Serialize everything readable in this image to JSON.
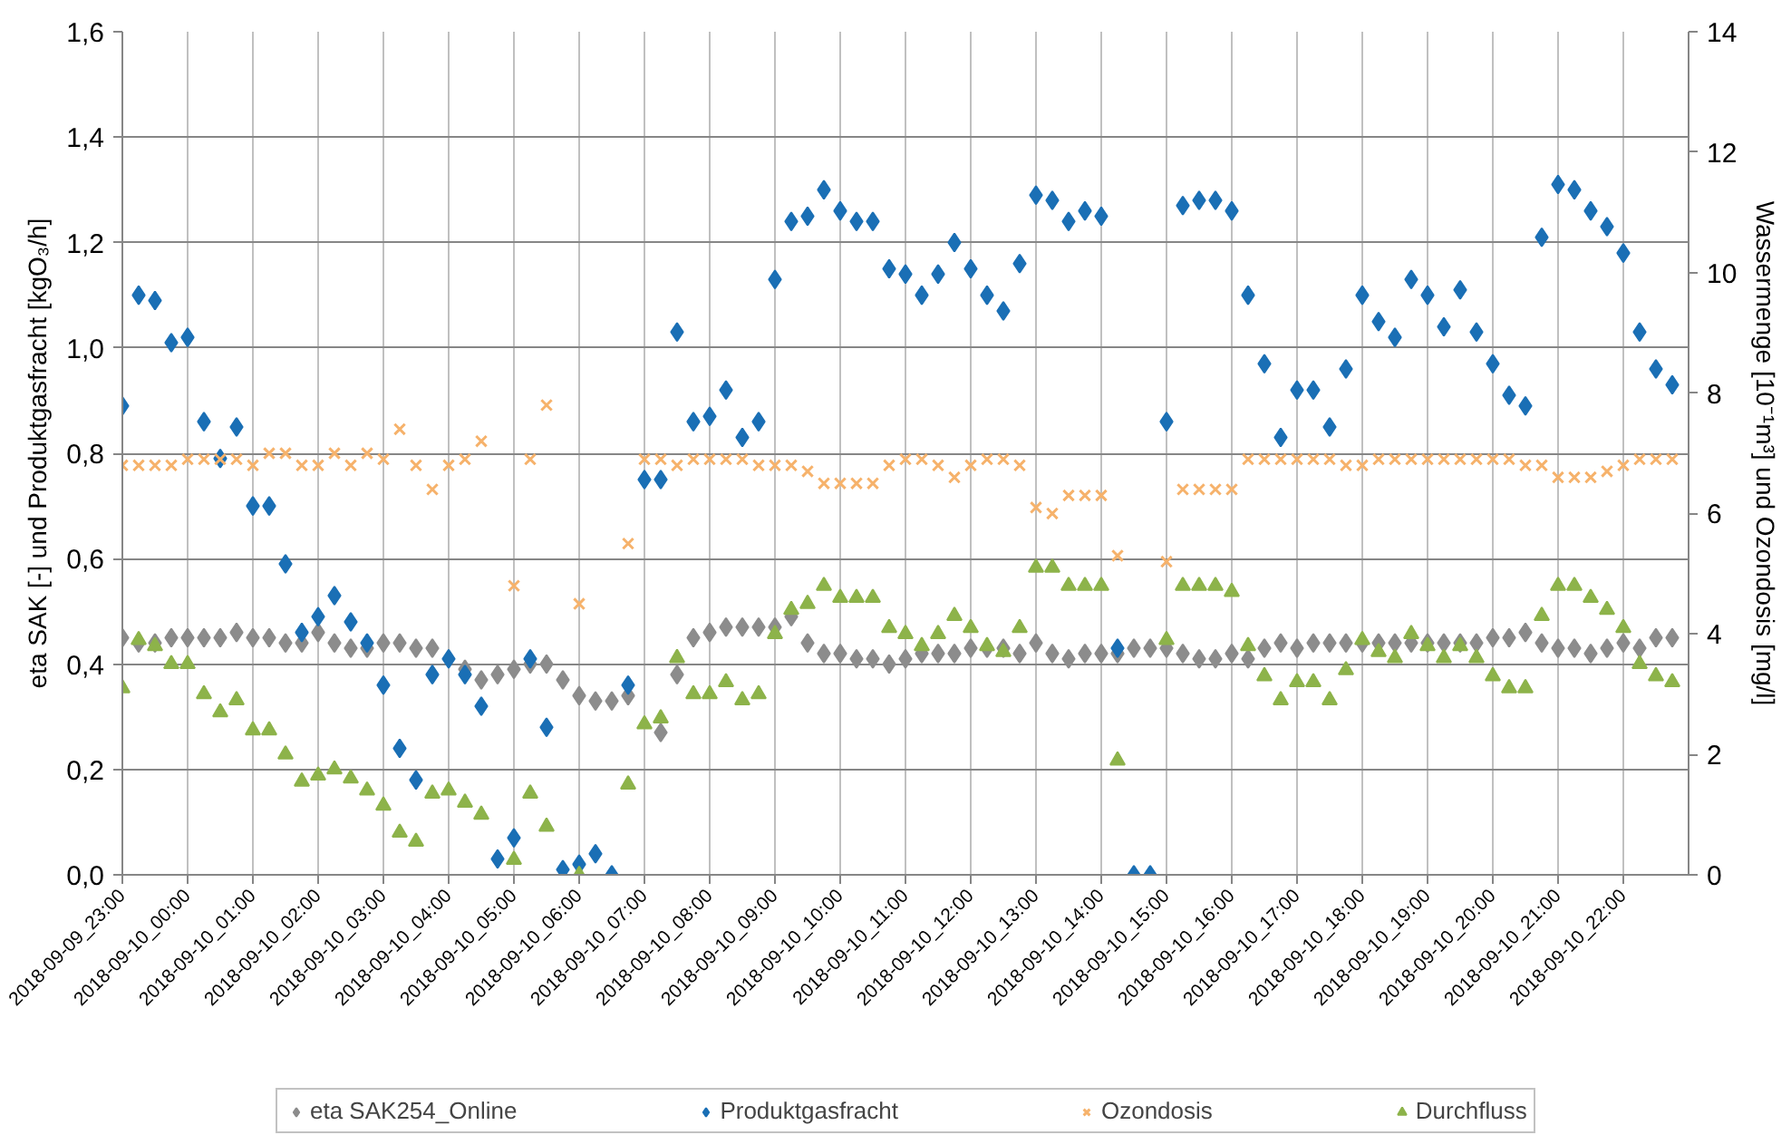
{
  "chart_data": {
    "type": "scatter",
    "x": [
      "2018-09-09T23:00",
      "2018-09-09T23:15",
      "2018-09-09T23:30",
      "2018-09-09T23:45",
      "2018-09-10T00:00",
      "2018-09-10T00:15",
      "2018-09-10T00:30",
      "2018-09-10T00:45",
      "2018-09-10T01:00",
      "2018-09-10T01:15",
      "2018-09-10T01:30",
      "2018-09-10T01:45",
      "2018-09-10T02:00",
      "2018-09-10T02:15",
      "2018-09-10T02:30",
      "2018-09-10T02:45",
      "2018-09-10T03:00",
      "2018-09-10T03:15",
      "2018-09-10T03:30",
      "2018-09-10T03:45",
      "2018-09-10T04:00",
      "2018-09-10T04:15",
      "2018-09-10T04:30",
      "2018-09-10T04:45",
      "2018-09-10T05:00",
      "2018-09-10T05:15",
      "2018-09-10T05:30",
      "2018-09-10T05:45",
      "2018-09-10T06:00",
      "2018-09-10T06:15",
      "2018-09-10T06:30",
      "2018-09-10T06:45",
      "2018-09-10T07:00",
      "2018-09-10T07:15",
      "2018-09-10T07:30",
      "2018-09-10T07:45",
      "2018-09-10T08:00",
      "2018-09-10T08:15",
      "2018-09-10T08:30",
      "2018-09-10T08:45",
      "2018-09-10T09:00",
      "2018-09-10T09:15",
      "2018-09-10T09:30",
      "2018-09-10T09:45",
      "2018-09-10T10:00",
      "2018-09-10T10:15",
      "2018-09-10T10:30",
      "2018-09-10T10:45",
      "2018-09-10T11:00",
      "2018-09-10T11:15",
      "2018-09-10T11:30",
      "2018-09-10T11:45",
      "2018-09-10T12:00",
      "2018-09-10T12:15",
      "2018-09-10T12:30",
      "2018-09-10T12:45",
      "2018-09-10T13:00",
      "2018-09-10T13:15",
      "2018-09-10T13:30",
      "2018-09-10T13:45",
      "2018-09-10T14:00",
      "2018-09-10T14:15",
      "2018-09-10T14:30",
      "2018-09-10T14:45",
      "2018-09-10T15:00",
      "2018-09-10T15:15",
      "2018-09-10T15:30",
      "2018-09-10T15:45",
      "2018-09-10T16:00",
      "2018-09-10T16:15",
      "2018-09-10T16:30",
      "2018-09-10T16:45",
      "2018-09-10T17:00",
      "2018-09-10T17:15",
      "2018-09-10T17:30",
      "2018-09-10T17:45",
      "2018-09-10T18:00",
      "2018-09-10T18:15",
      "2018-09-10T18:30",
      "2018-09-10T18:45",
      "2018-09-10T19:00",
      "2018-09-10T19:15",
      "2018-09-10T19:30",
      "2018-09-10T19:45",
      "2018-09-10T20:00",
      "2018-09-10T20:15",
      "2018-09-10T20:30",
      "2018-09-10T20:45",
      "2018-09-10T21:00",
      "2018-09-10T21:15",
      "2018-09-10T21:30",
      "2018-09-10T21:45",
      "2018-09-10T22:00",
      "2018-09-10T22:15",
      "2018-09-10T22:30",
      "2018-09-10T22:45"
    ],
    "xlim": [
      "2018-09-09T23:00",
      "2018-09-10T23:00"
    ],
    "xticks": [
      {
        "value": "2018-09-09T23:00",
        "label": "2018-09-09_23:00"
      },
      {
        "value": "2018-09-10T00:00",
        "label": "2018-09-10_00:00"
      },
      {
        "value": "2018-09-10T01:00",
        "label": "2018-09-10_01:00"
      },
      {
        "value": "2018-09-10T02:00",
        "label": "2018-09-10_02:00"
      },
      {
        "value": "2018-09-10T03:00",
        "label": "2018-09-10_03:00"
      },
      {
        "value": "2018-09-10T04:00",
        "label": "2018-09-10_04:00"
      },
      {
        "value": "2018-09-10T05:00",
        "label": "2018-09-10_05:00"
      },
      {
        "value": "2018-09-10T06:00",
        "label": "2018-09-10_06:00"
      },
      {
        "value": "2018-09-10T07:00",
        "label": "2018-09-10_07:00"
      },
      {
        "value": "2018-09-10T08:00",
        "label": "2018-09-10_08:00"
      },
      {
        "value": "2018-09-10T09:00",
        "label": "2018-09-10_09:00"
      },
      {
        "value": "2018-09-10T10:00",
        "label": "2018-09-10_10:00"
      },
      {
        "value": "2018-09-10T11:00",
        "label": "2018-09-10_11:00"
      },
      {
        "value": "2018-09-10T12:00",
        "label": "2018-09-10_12:00"
      },
      {
        "value": "2018-09-10T13:00",
        "label": "2018-09-10_13:00"
      },
      {
        "value": "2018-09-10T14:00",
        "label": "2018-09-10_14:00"
      },
      {
        "value": "2018-09-10T15:00",
        "label": "2018-09-10_15:00"
      },
      {
        "value": "2018-09-10T16:00",
        "label": "2018-09-10_16:00"
      },
      {
        "value": "2018-09-10T17:00",
        "label": "2018-09-10_17:00"
      },
      {
        "value": "2018-09-10T18:00",
        "label": "2018-09-10_18:00"
      },
      {
        "value": "2018-09-10T19:00",
        "label": "2018-09-10_19:00"
      },
      {
        "value": "2018-09-10T20:00",
        "label": "2018-09-10_20:00"
      },
      {
        "value": "2018-09-10T21:00",
        "label": "2018-09-10_21:00"
      },
      {
        "value": "2018-09-10T22:00",
        "label": "2018-09-10_22:00"
      }
    ],
    "ylabel": "eta SAK [-] und Produktgasfracht [kgO₃/h]",
    "y2label": "Wassermenge [10⁻¹m³] und Ozondosis [mg/l]",
    "ylim": [
      0,
      1.6
    ],
    "yticks": [
      {
        "value": 0,
        "label": "0,0"
      },
      {
        "value": 0.2,
        "label": "0,2"
      },
      {
        "value": 0.4,
        "label": "0,4"
      },
      {
        "value": 0.6,
        "label": "0,6"
      },
      {
        "value": 0.8,
        "label": "0,8"
      },
      {
        "value": 1.0,
        "label": "1,0"
      },
      {
        "value": 1.2,
        "label": "1,2"
      },
      {
        "value": 1.4,
        "label": "1,4"
      },
      {
        "value": 1.6,
        "label": "1,6"
      }
    ],
    "y2lim": [
      0,
      14
    ],
    "y2ticks": [
      0,
      2,
      4,
      6,
      8,
      10,
      12,
      14
    ],
    "grid": true,
    "legend": "bottom",
    "series": [
      {
        "name": "eta SAK254_Online",
        "color": "#8c8c8c",
        "marker": "diamond",
        "values": [
          0.45,
          0.44,
          0.44,
          0.45,
          0.45,
          0.45,
          0.45,
          0.46,
          0.45,
          0.45,
          0.44,
          0.44,
          0.46,
          0.44,
          0.43,
          0.43,
          0.44,
          0.44,
          0.43,
          0.43,
          null,
          0.39,
          0.37,
          0.38,
          0.39,
          0.4,
          0.4,
          0.37,
          0.34,
          0.33,
          0.33,
          0.34,
          null,
          0.27,
          0.38,
          0.45,
          0.46,
          0.47,
          0.47,
          0.47,
          0.47,
          0.49,
          0.44,
          0.42,
          0.42,
          0.41,
          0.41,
          0.4,
          0.41,
          0.42,
          0.42,
          0.42,
          0.43,
          0.43,
          0.43,
          0.42,
          0.44,
          0.42,
          0.41,
          0.42,
          0.42,
          0.42,
          0.43,
          0.43,
          0.43,
          0.42,
          0.41,
          0.41,
          0.42,
          0.41,
          0.43,
          0.44,
          0.43,
          0.44,
          0.44,
          0.44,
          0.44,
          0.44,
          0.44,
          0.44,
          0.44,
          0.44,
          0.44,
          0.44,
          0.45,
          0.45,
          0.46,
          0.44,
          0.43,
          0.43,
          0.42,
          0.43,
          0.44,
          0.43,
          0.45,
          0.45
        ]
      },
      {
        "name": "Produktgasfracht",
        "color": "#1a6fb5",
        "marker": "diamond",
        "values": [
          0.89,
          1.1,
          1.09,
          1.01,
          1.02,
          0.86,
          0.79,
          0.85,
          0.7,
          0.7,
          0.59,
          0.46,
          0.49,
          0.53,
          0.48,
          0.44,
          0.36,
          0.24,
          0.18,
          0.38,
          0.41,
          0.38,
          0.32,
          0.03,
          0.07,
          0.41,
          0.28,
          0.01,
          0.02,
          0.04,
          0.0,
          0.36,
          0.75,
          0.75,
          1.03,
          0.86,
          0.87,
          0.92,
          0.83,
          0.86,
          1.13,
          1.24,
          1.25,
          1.3,
          1.26,
          1.24,
          1.24,
          1.15,
          1.14,
          1.1,
          1.14,
          1.2,
          1.15,
          1.1,
          1.07,
          1.16,
          1.29,
          1.28,
          1.24,
          1.26,
          1.25,
          0.43,
          0.0,
          0.0,
          0.86,
          1.27,
          1.28,
          1.28,
          1.26,
          1.1,
          0.97,
          0.83,
          0.92,
          0.92,
          0.85,
          0.96,
          1.1,
          1.05,
          1.02,
          1.13,
          1.1,
          1.04,
          1.11,
          1.03,
          0.97,
          0.91,
          0.89,
          1.21,
          1.31,
          1.3,
          1.26,
          1.23,
          1.18,
          1.03,
          0.96,
          0.93
        ]
      },
      {
        "name": "Ozondosis",
        "color": "#f6b26b",
        "marker": "cross",
        "axis": "y2",
        "values": [
          6.8,
          6.8,
          6.8,
          6.8,
          6.9,
          6.9,
          6.9,
          6.9,
          6.8,
          7.0,
          7.0,
          6.8,
          6.8,
          7.0,
          6.8,
          7.0,
          6.9,
          7.4,
          6.8,
          6.4,
          6.8,
          6.9,
          7.2,
          null,
          4.8,
          6.9,
          7.8,
          null,
          4.5,
          null,
          null,
          5.5,
          6.9,
          6.9,
          6.8,
          6.9,
          6.9,
          6.9,
          6.9,
          6.8,
          6.8,
          6.8,
          6.7,
          6.5,
          6.5,
          6.5,
          6.5,
          6.8,
          6.9,
          6.9,
          6.8,
          6.6,
          6.8,
          6.9,
          6.9,
          6.8,
          6.1,
          6.0,
          6.3,
          6.3,
          6.3,
          5.3,
          null,
          null,
          5.2,
          6.4,
          6.4,
          6.4,
          6.4,
          6.9,
          6.9,
          6.9,
          6.9,
          6.9,
          6.9,
          6.8,
          6.8,
          6.9,
          6.9,
          6.9,
          6.9,
          6.9,
          6.9,
          6.9,
          6.9,
          6.9,
          6.8,
          6.8,
          6.6,
          6.6,
          6.6,
          6.7,
          6.8,
          6.9,
          6.9,
          6.9
        ]
      },
      {
        "name": "Durchfluss",
        "color": "#8db34a",
        "marker": "triangle",
        "axis": "y2",
        "values": [
          3.1,
          3.9,
          3.8,
          3.5,
          3.5,
          3.0,
          2.7,
          2.9,
          2.4,
          2.4,
          2.0,
          1.55,
          1.65,
          1.75,
          1.6,
          1.4,
          1.15,
          0.7,
          0.55,
          1.35,
          1.4,
          1.2,
          1.0,
          null,
          0.25,
          1.35,
          0.8,
          null,
          0.0,
          null,
          null,
          1.5,
          2.5,
          2.6,
          3.6,
          3.0,
          3.0,
          3.2,
          2.9,
          3.0,
          4.0,
          4.4,
          4.5,
          4.8,
          4.6,
          4.6,
          4.6,
          4.1,
          4.0,
          3.8,
          4.0,
          4.3,
          4.1,
          3.8,
          3.7,
          4.1,
          5.1,
          5.1,
          4.8,
          4.8,
          4.8,
          1.9,
          null,
          null,
          3.9,
          4.8,
          4.8,
          4.8,
          4.7,
          3.8,
          3.3,
          2.9,
          3.2,
          3.2,
          2.9,
          3.4,
          3.9,
          3.7,
          3.6,
          4.0,
          3.8,
          3.6,
          3.8,
          3.6,
          3.3,
          3.1,
          3.1,
          4.3,
          4.8,
          4.8,
          4.6,
          4.4,
          4.1,
          3.5,
          3.3,
          3.2
        ]
      }
    ]
  }
}
